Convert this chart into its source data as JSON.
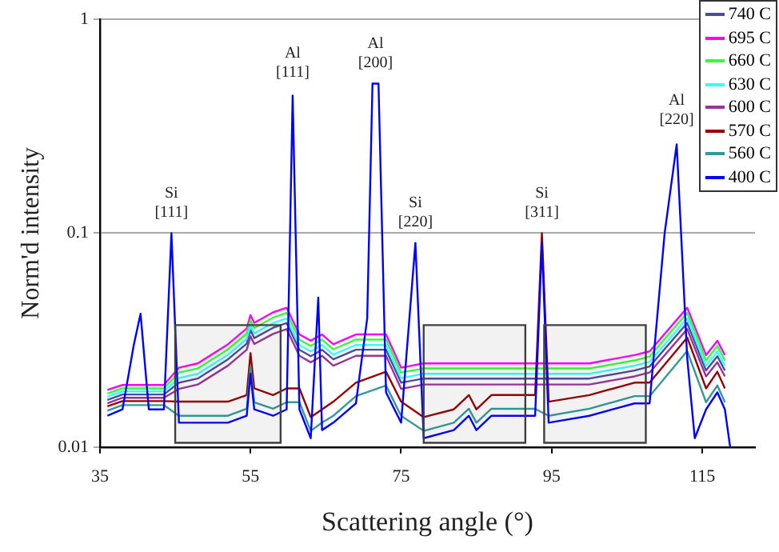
{
  "chart_data": {
    "type": "line",
    "xlabel": "Scattering angle (°)",
    "ylabel": "Norm'd intensity",
    "x": [
      36,
      38,
      39.5,
      40.4,
      41.5,
      43.5,
      44.5,
      45.5,
      48,
      52,
      54.5,
      55,
      55.5,
      58,
      59.8,
      60.6,
      61.5,
      63,
      64,
      64.5,
      66,
      69,
      70.5,
      71.2,
      72,
      73,
      75,
      76.9,
      78,
      82,
      84,
      85,
      87,
      90,
      92.8,
      93.7,
      94.6,
      100,
      106,
      108,
      110,
      111.6,
      113,
      114,
      115.5,
      117,
      118,
      118.7
    ],
    "series": [
      {
        "name": "740 C",
        "color": "#4b4ba0",
        "values": [
          0.0166,
          0.0176,
          null,
          null,
          0.0176,
          0.0176,
          null,
          0.02,
          0.0209,
          0.0257,
          0.0304,
          0.0352,
          0.0323,
          0.0361,
          0.038,
          null,
          0.0285,
          0.0266,
          null,
          0.0285,
          0.0257,
          0.0285,
          null,
          null,
          null,
          0.0285,
          0.02,
          null,
          0.0209,
          0.0209,
          0.0209,
          0.0209,
          0.0209,
          0.0209,
          0.0209,
          null,
          0.0209,
          0.0209,
          0.0228,
          0.0238,
          null,
          null,
          0.038,
          null,
          0.0228,
          0.0266,
          0.0228,
          null
        ]
      },
      {
        "name": "695 C",
        "color": "#ff00ff",
        "values": [
          0.0185,
          0.0195,
          null,
          null,
          0.0195,
          0.0195,
          null,
          0.0235,
          0.0246,
          0.0302,
          0.0358,
          0.0414,
          0.0381,
          0.0426,
          0.0448,
          null,
          0.0336,
          0.0314,
          null,
          0.0336,
          0.0302,
          0.0336,
          null,
          null,
          null,
          0.0336,
          0.0235,
          null,
          0.0246,
          0.0246,
          0.0246,
          0.0246,
          0.0246,
          0.0246,
          0.0246,
          null,
          0.0246,
          0.0246,
          0.0269,
          0.028,
          null,
          null,
          0.0448,
          null,
          0.0269,
          0.0314,
          0.0269,
          null
        ]
      },
      {
        "name": "660 C",
        "color": "#33ff33",
        "values": [
          0.0178,
          0.0188,
          null,
          null,
          0.0188,
          0.0188,
          null,
          0.0223,
          0.0233,
          0.0286,
          0.0339,
          0.0392,
          0.036,
          0.0403,
          0.0424,
          null,
          0.0318,
          0.0297,
          null,
          0.0318,
          0.0286,
          0.0318,
          null,
          null,
          null,
          0.0318,
          0.0223,
          null,
          0.0233,
          0.0233,
          0.0233,
          0.0233,
          0.0233,
          0.0233,
          0.0233,
          null,
          0.0233,
          0.0233,
          0.0254,
          0.0265,
          null,
          null,
          0.0424,
          null,
          0.0254,
          0.0297,
          0.0254,
          null
        ]
      },
      {
        "name": "630 C",
        "color": "#33ffff",
        "values": [
          0.0172,
          0.0182,
          null,
          null,
          0.0182,
          0.0182,
          null,
          0.021,
          0.022,
          0.027,
          0.032,
          0.037,
          0.034,
          0.038,
          0.04,
          null,
          0.03,
          0.028,
          null,
          0.03,
          0.027,
          0.03,
          null,
          null,
          null,
          0.03,
          0.021,
          null,
          0.022,
          0.022,
          0.022,
          0.022,
          0.022,
          0.022,
          0.022,
          null,
          0.022,
          0.022,
          0.024,
          0.025,
          null,
          null,
          0.04,
          null,
          0.024,
          0.028,
          0.024,
          null
        ]
      },
      {
        "name": "600 C",
        "color": "#993399",
        "values": [
          0.016,
          0.017,
          null,
          null,
          0.017,
          0.017,
          null,
          0.0187,
          0.0196,
          0.024,
          0.0285,
          0.0329,
          0.0303,
          0.0338,
          0.0356,
          null,
          0.0267,
          0.0249,
          null,
          0.0267,
          0.024,
          0.0267,
          null,
          null,
          null,
          0.0267,
          0.0187,
          null,
          0.0196,
          0.0196,
          0.0196,
          0.0196,
          0.0196,
          0.0196,
          0.0196,
          null,
          0.0196,
          0.0196,
          0.0214,
          0.0223,
          null,
          null,
          0.0356,
          null,
          0.0214,
          0.0249,
          0.0214,
          null
        ]
      },
      {
        "name": "570 C",
        "color": "#990000",
        "values": [
          0.0155,
          0.0164,
          null,
          null,
          0.0164,
          0.0164,
          null,
          0.0163,
          0.0163,
          0.0163,
          0.0175,
          0.0275,
          0.0188,
          0.0175,
          0.0188,
          null,
          0.0188,
          0.0138,
          null,
          0.015,
          0.0163,
          0.02,
          null,
          null,
          null,
          0.0225,
          0.0163,
          null,
          0.0138,
          0.015,
          0.0175,
          0.015,
          0.0175,
          0.0175,
          0.0175,
          0.1,
          0.0163,
          0.0175,
          0.02,
          0.02,
          null,
          null,
          0.0325,
          null,
          0.0188,
          0.0225,
          0.0188,
          null
        ]
      },
      {
        "name": "560 C",
        "color": "#339999",
        "values": [
          0.0148,
          0.0157,
          null,
          null,
          0.0157,
          0.0157,
          null,
          0.014,
          0.014,
          0.014,
          0.0151,
          0.0238,
          0.0162,
          0.0151,
          0.0162,
          null,
          0.0162,
          0.0119,
          null,
          0.013,
          0.014,
          0.0173,
          null,
          null,
          null,
          0.0194,
          0.014,
          null,
          0.0119,
          0.013,
          0.0151,
          0.013,
          0.0151,
          0.0151,
          0.0151,
          null,
          0.014,
          0.0151,
          0.0173,
          0.0173,
          null,
          null,
          0.0281,
          null,
          0.0162,
          0.0194,
          0.0162,
          null
        ]
      },
      {
        "name": "400 C",
        "color": "#0000ff",
        "values": [
          0.014,
          0.015,
          0.03,
          0.042,
          0.015,
          0.015,
          0.1,
          0.013,
          0.013,
          0.013,
          0.014,
          0.022,
          0.015,
          0.014,
          0.015,
          0.44,
          0.015,
          0.011,
          0.05,
          0.012,
          0.013,
          0.016,
          0.04,
          0.5,
          0.5,
          0.018,
          0.013,
          0.09,
          0.011,
          0.012,
          0.014,
          0.012,
          0.014,
          0.014,
          0.014,
          0.09,
          0.013,
          0.014,
          0.016,
          0.016,
          0.1,
          0.26,
          0.026,
          0.011,
          0.015,
          0.018,
          0.015,
          0.01
        ]
      }
    ],
    "xlim": [
      35,
      122
    ],
    "xticks": [
      35,
      55,
      75,
      95,
      115
    ],
    "ylim": [
      0.01,
      1
    ],
    "yticks": [
      0.01,
      0.1,
      1
    ],
    "log": true,
    "grid": "y",
    "legend": "top right",
    "marker": "none",
    "line_style": "solid",
    "annotations": [
      {
        "text": "Si [111]",
        "x": 44.5,
        "y": 0.1
      },
      {
        "text": "Al [111]",
        "x": 60.6,
        "y": 0.45
      },
      {
        "text": "Al [200]",
        "x": 71.6,
        "y": 0.5
      },
      {
        "text": "Si [220]",
        "x": 76.9,
        "y": 0.09
      },
      {
        "text": "Si [311]",
        "x": 93.7,
        "y": 0.1
      },
      {
        "text": "Al [220]",
        "x": 111.6,
        "y": 0.27
      }
    ],
    "bands": [
      {
        "axis": "x",
        "from": 45,
        "to": 59,
        "color": "#404040"
      },
      {
        "axis": "x",
        "from": 78,
        "to": 91.5,
        "color": "#404040"
      },
      {
        "axis": "x",
        "from": 94,
        "to": 107.5,
        "color": "#404040"
      }
    ]
  }
}
